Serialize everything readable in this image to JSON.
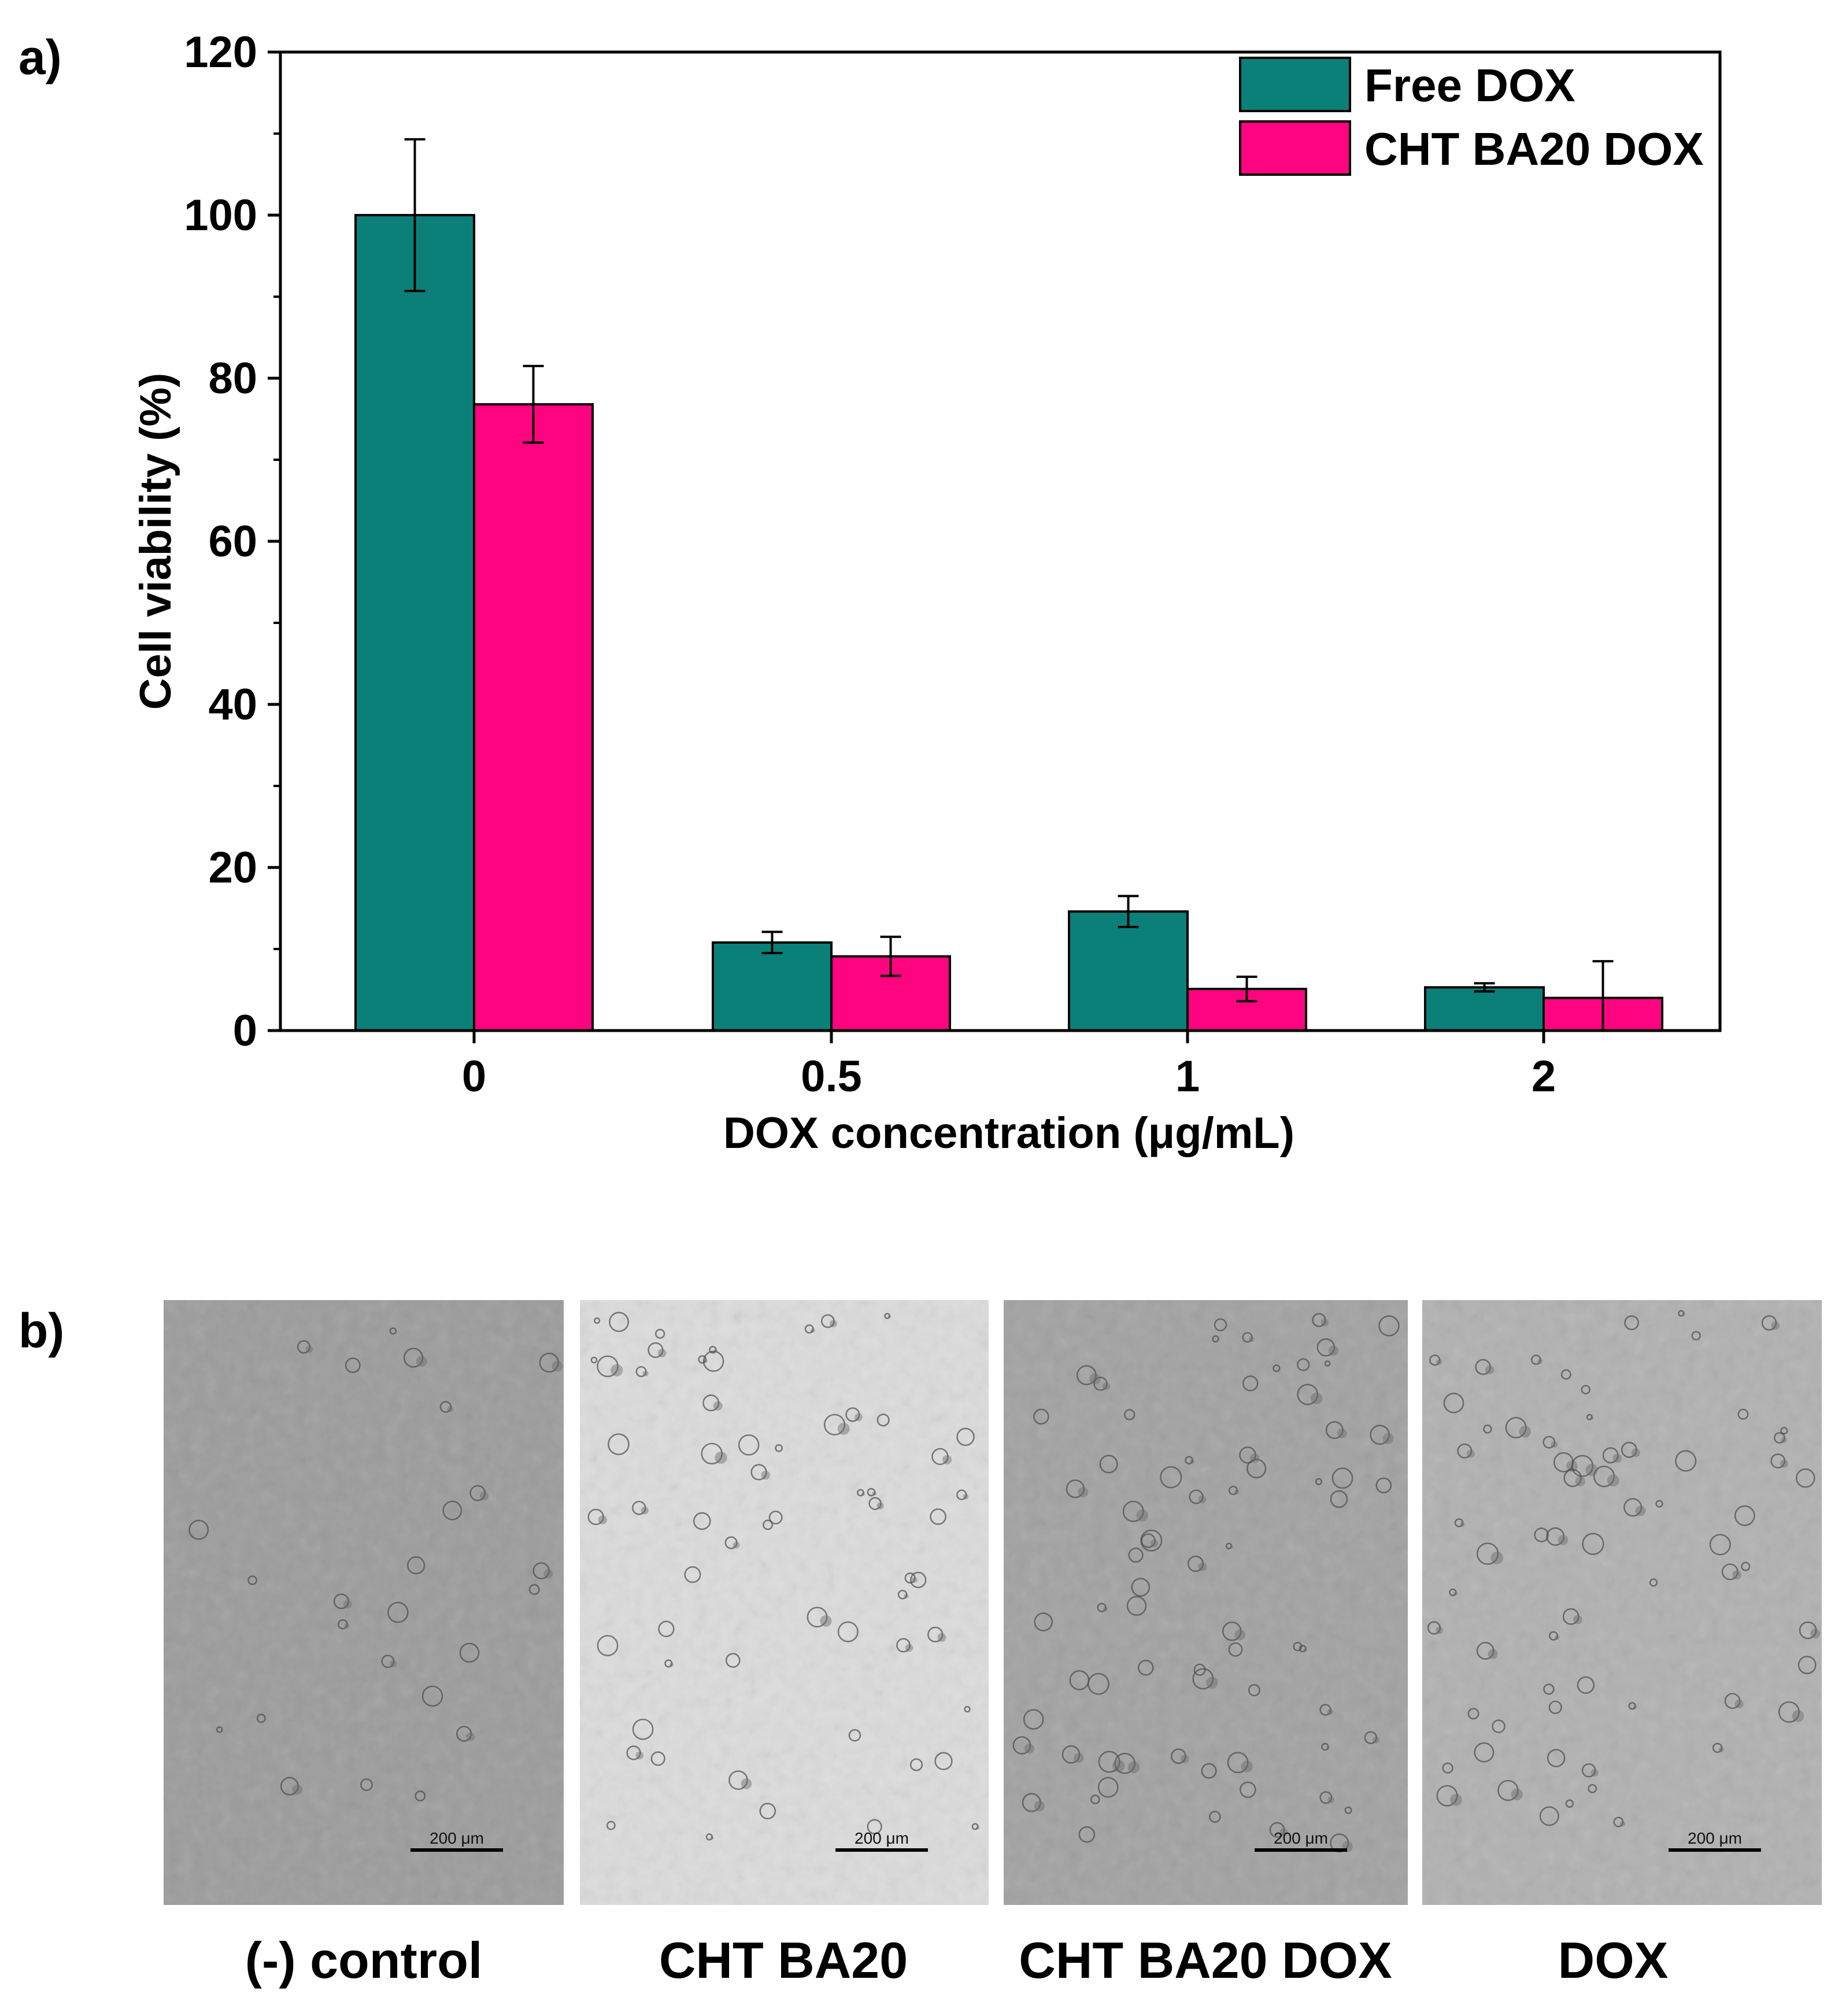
{
  "panel_a_label": "a)",
  "panel_b_label": "b)",
  "chart_data": {
    "type": "bar",
    "xlabel": "DOX concentration (μg/mL)",
    "ylabel": "Cell viability (%)",
    "ylim": [
      0,
      120
    ],
    "yticks": [
      "0",
      "20",
      "40",
      "60",
      "80",
      "100",
      "120"
    ],
    "categories": [
      "0",
      "0.5",
      "1",
      "2"
    ],
    "series": [
      {
        "name": "Free DOX",
        "color": "#0b8078",
        "values": [
          100,
          10.8,
          14.6,
          5.3
        ],
        "errors": [
          9.3,
          1.3,
          1.9,
          0.5
        ]
      },
      {
        "name": "CHT BA20 DOX",
        "color": "#ff0480",
        "values": [
          76.8,
          9.1,
          5.1,
          4.0
        ],
        "errors": [
          4.7,
          2.4,
          1.5,
          4.5
        ]
      }
    ],
    "legend_position": "top-right",
    "grid": false
  },
  "micrographs": [
    {
      "caption": "(-) control",
      "scale_bar": "200 μm",
      "tone": "#9c9c9c"
    },
    {
      "caption": "CHT BA20",
      "scale_bar": "200 μm",
      "tone": "#dcdcdc"
    },
    {
      "caption": "CHT BA20 DOX",
      "scale_bar": "200 μm",
      "tone": "#a2a2a2"
    },
    {
      "caption": "DOX",
      "scale_bar": "200 μm",
      "tone": "#b1b1b1"
    }
  ]
}
